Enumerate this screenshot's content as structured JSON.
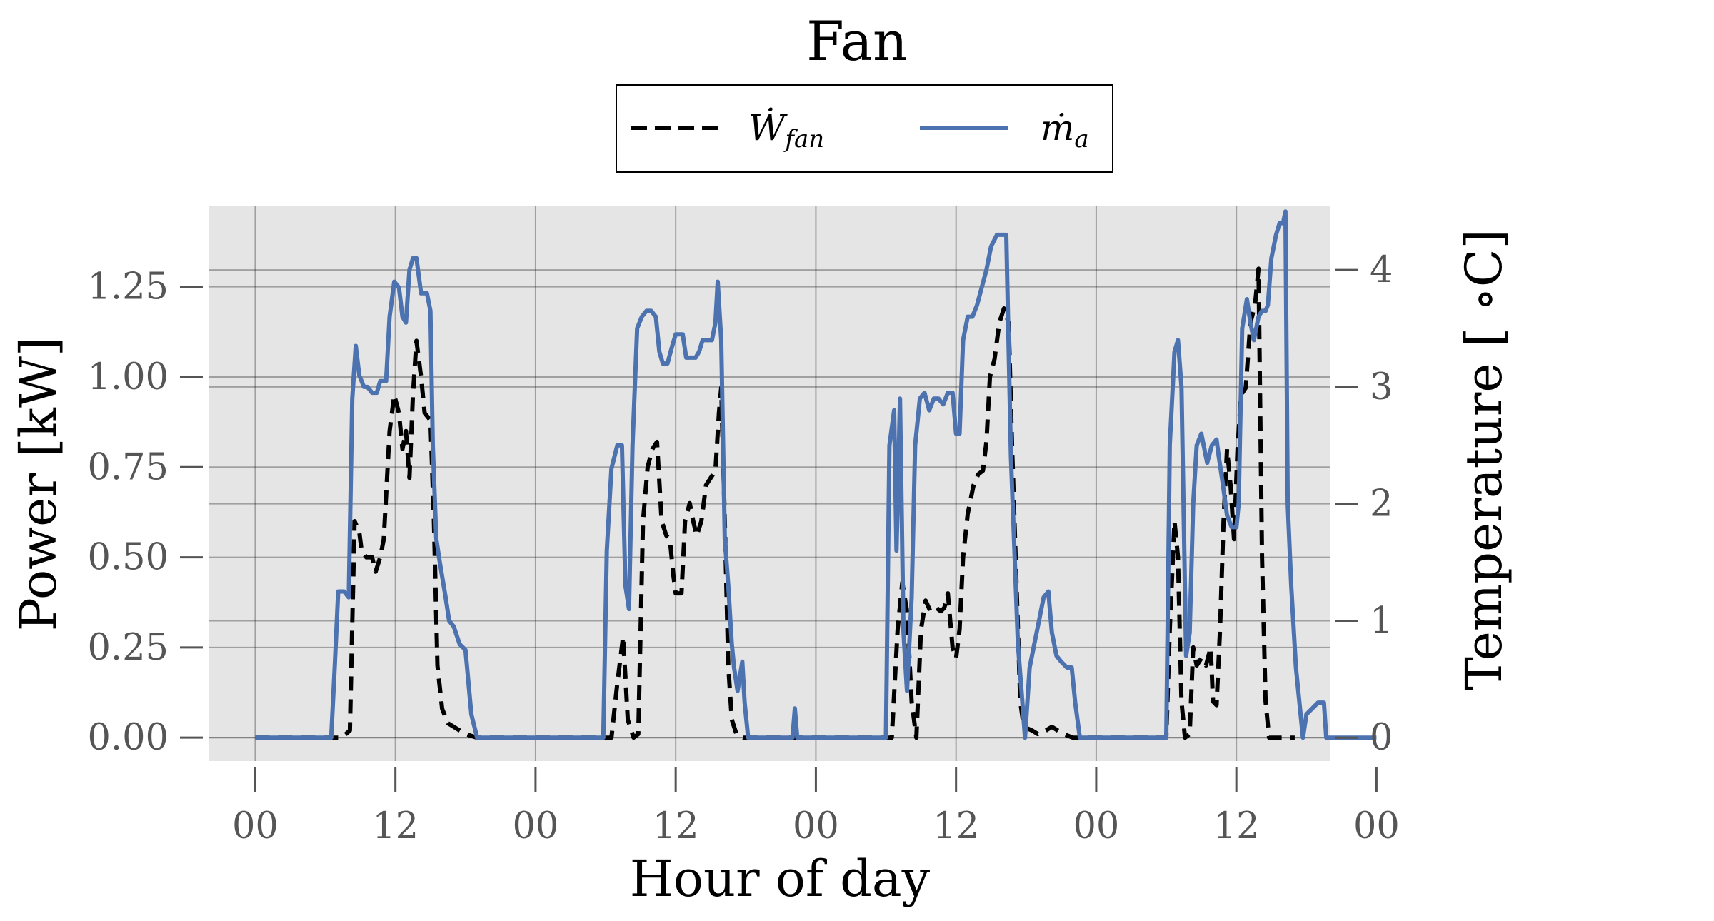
{
  "chart_data": {
    "type": "line",
    "title": "Fan",
    "xlabel": "Hour of day",
    "ylabel": "Power [kW]",
    "ylabel_right": "Temperature [$^\\circ$C]",
    "ylabel_right_display": "Temperature [ ∘C]",
    "x_unit": "hours",
    "xlim": [
      -4,
      92
    ],
    "ylim": [
      -0.065,
      1.475
    ],
    "ylim_right": [
      -0.2,
      4.55
    ],
    "x_ticks": [
      0,
      12,
      24,
      36,
      48,
      60,
      72,
      84,
      96
    ],
    "x_tick_labels": [
      "00",
      "12",
      "00",
      "12",
      "00",
      "12",
      "00",
      "12",
      "00"
    ],
    "y_ticks": [
      0.0,
      0.25,
      0.5,
      0.75,
      1.0,
      1.25
    ],
    "y_tick_labels": [
      "0.00",
      "0.25",
      "0.50",
      "0.75",
      "1.00",
      "1.25"
    ],
    "y_ticks_right": [
      0,
      1,
      2,
      3,
      4
    ],
    "y_tick_labels_right": [
      "0",
      "1",
      "2",
      "3",
      "4"
    ],
    "grid": true,
    "legend_position": "top-center",
    "legend_entries": [
      {
        "label": "Ẇ",
        "sub": "fan",
        "style": "dashed",
        "color": "#000000"
      },
      {
        "label": "ṁ",
        "sub": "a",
        "style": "solid",
        "color": "#4c72b0"
      }
    ],
    "series": [
      {
        "name": "W_fan",
        "axis": "left",
        "style": "dashed",
        "color": "#000000",
        "points": [
          [
            0,
            0
          ],
          [
            7.4,
            0
          ],
          [
            8.1,
            0.02
          ],
          [
            8.5,
            0.6
          ],
          [
            8.9,
            0.57
          ],
          [
            9.1,
            0.52
          ],
          [
            9.5,
            0.5
          ],
          [
            10,
            0.5
          ],
          [
            10.3,
            0.46
          ],
          [
            10.7,
            0.5
          ],
          [
            11,
            0.55
          ],
          [
            11.5,
            0.85
          ],
          [
            11.9,
            0.95
          ],
          [
            12.3,
            0.9
          ],
          [
            12.6,
            0.8
          ],
          [
            12.9,
            0.85
          ],
          [
            13.2,
            0.72
          ],
          [
            13.5,
            0.95
          ],
          [
            13.8,
            1.1
          ],
          [
            14.2,
            1.0
          ],
          [
            14.5,
            0.9
          ],
          [
            15,
            0.88
          ],
          [
            15.3,
            0.6
          ],
          [
            15.6,
            0.2
          ],
          [
            16,
            0.08
          ],
          [
            16.5,
            0.04
          ],
          [
            17.5,
            0.02
          ],
          [
            18,
            0.01
          ],
          [
            19,
            0
          ],
          [
            30.5,
            0
          ],
          [
            31,
            0.15
          ],
          [
            31.5,
            0.28
          ],
          [
            31.9,
            0.05
          ],
          [
            32.4,
            0
          ],
          [
            32.8,
            0.01
          ],
          [
            33.2,
            0.6
          ],
          [
            33.6,
            0.75
          ],
          [
            34,
            0.8
          ],
          [
            34.4,
            0.82
          ],
          [
            34.8,
            0.6
          ],
          [
            35.2,
            0.56
          ],
          [
            35.5,
            0.55
          ],
          [
            35.8,
            0.45
          ],
          [
            36,
            0.4
          ],
          [
            36.5,
            0.4
          ],
          [
            36.8,
            0.6
          ],
          [
            37.2,
            0.65
          ],
          [
            37.5,
            0.6
          ],
          [
            37.8,
            0.56
          ],
          [
            38.2,
            0.6
          ],
          [
            38.6,
            0.7
          ],
          [
            39,
            0.72
          ],
          [
            39.4,
            0.74
          ],
          [
            39.7,
            0.9
          ],
          [
            39.9,
            0.97
          ],
          [
            40.2,
            0.6
          ],
          [
            40.5,
            0.2
          ],
          [
            40.8,
            0.05
          ],
          [
            41.2,
            0.01
          ],
          [
            41.8,
            0
          ],
          [
            54.5,
            0
          ],
          [
            55,
            0.3
          ],
          [
            55.4,
            0.43
          ],
          [
            55.8,
            0.35
          ],
          [
            56.2,
            0.1
          ],
          [
            56.6,
            0
          ],
          [
            57,
            0.3
          ],
          [
            57.4,
            0.38
          ],
          [
            57.8,
            0.35
          ],
          [
            58.3,
            0.36
          ],
          [
            58.7,
            0.35
          ],
          [
            59,
            0.36
          ],
          [
            59.3,
            0.4
          ],
          [
            59.7,
            0.25
          ],
          [
            60,
            0.22
          ],
          [
            60.3,
            0.3
          ],
          [
            60.6,
            0.5
          ],
          [
            61,
            0.62
          ],
          [
            61.5,
            0.7
          ],
          [
            61.9,
            0.73
          ],
          [
            62.3,
            0.74
          ],
          [
            62.6,
            0.82
          ],
          [
            62.9,
            1.0
          ],
          [
            63.3,
            1.05
          ],
          [
            63.7,
            1.15
          ],
          [
            64.1,
            1.19
          ],
          [
            64.5,
            1.15
          ],
          [
            64.8,
            0.8
          ],
          [
            65.2,
            0.4
          ],
          [
            65.5,
            0.1
          ],
          [
            65.8,
            0.03
          ],
          [
            66.5,
            0.02
          ],
          [
            67,
            0.01
          ],
          [
            67.7,
            0.02
          ],
          [
            68.2,
            0.03
          ],
          [
            68.7,
            0.02
          ],
          [
            69.2,
            0.01
          ],
          [
            70,
            0
          ],
          [
            78,
            0
          ],
          [
            78.3,
            0.3
          ],
          [
            78.7,
            0.6
          ],
          [
            79,
            0.5
          ],
          [
            79.3,
            0.1
          ],
          [
            79.6,
            0
          ],
          [
            80,
            0.01
          ],
          [
            80.3,
            0.25
          ],
          [
            80.6,
            0.2
          ],
          [
            81,
            0.22
          ],
          [
            81.4,
            0.2
          ],
          [
            81.8,
            0.25
          ],
          [
            82,
            0.1
          ],
          [
            82.3,
            0.09
          ],
          [
            82.6,
            0.3
          ],
          [
            82.9,
            0.6
          ],
          [
            83.2,
            0.8
          ],
          [
            83.5,
            0.7
          ],
          [
            83.8,
            0.55
          ],
          [
            84.1,
            0.8
          ],
          [
            84.4,
            0.95
          ],
          [
            84.8,
            0.97
          ],
          [
            85.2,
            1.15
          ],
          [
            85.6,
            1.2
          ],
          [
            85.9,
            1.3
          ],
          [
            86.2,
            0.5
          ],
          [
            86.5,
            0.1
          ],
          [
            86.8,
            0
          ],
          [
            87.5,
            0
          ],
          [
            89,
            0
          ]
        ]
      },
      {
        "name": "m_a",
        "axis": "right",
        "style": "solid",
        "color": "#4c72b0",
        "points": [
          [
            0,
            0
          ],
          [
            6.5,
            0
          ],
          [
            6.8,
            0.6
          ],
          [
            7.1,
            1.25
          ],
          [
            7.6,
            1.25
          ],
          [
            8,
            1.2
          ],
          [
            8.3,
            2.9
          ],
          [
            8.6,
            3.35
          ],
          [
            8.9,
            3.1
          ],
          [
            9.3,
            3.0
          ],
          [
            9.6,
            3.0
          ],
          [
            10,
            2.95
          ],
          [
            10.4,
            2.95
          ],
          [
            10.7,
            3.05
          ],
          [
            11.2,
            3.05
          ],
          [
            11.5,
            3.6
          ],
          [
            11.9,
            3.9
          ],
          [
            12.3,
            3.85
          ],
          [
            12.6,
            3.6
          ],
          [
            12.9,
            3.55
          ],
          [
            13.2,
            4.0
          ],
          [
            13.5,
            4.1
          ],
          [
            13.8,
            4.1
          ],
          [
            14.2,
            3.8
          ],
          [
            14.7,
            3.8
          ],
          [
            15,
            3.65
          ],
          [
            15.2,
            2.5
          ],
          [
            15.5,
            1.7
          ],
          [
            15.8,
            1.5
          ],
          [
            16.3,
            1.2
          ],
          [
            16.6,
            1.0
          ],
          [
            17,
            0.95
          ],
          [
            17.5,
            0.8
          ],
          [
            18,
            0.75
          ],
          [
            18.5,
            0.2
          ],
          [
            19,
            0
          ],
          [
            29.8,
            0
          ],
          [
            30.1,
            1.6
          ],
          [
            30.5,
            2.3
          ],
          [
            31,
            2.5
          ],
          [
            31.4,
            2.5
          ],
          [
            31.7,
            1.3
          ],
          [
            32,
            1.1
          ],
          [
            32.3,
            2.5
          ],
          [
            32.7,
            3.5
          ],
          [
            33.1,
            3.6
          ],
          [
            33.5,
            3.65
          ],
          [
            33.9,
            3.65
          ],
          [
            34.3,
            3.6
          ],
          [
            34.6,
            3.3
          ],
          [
            34.9,
            3.2
          ],
          [
            35.3,
            3.2
          ],
          [
            35.7,
            3.35
          ],
          [
            36,
            3.45
          ],
          [
            36.3,
            3.45
          ],
          [
            36.6,
            3.45
          ],
          [
            36.9,
            3.25
          ],
          [
            37.3,
            3.25
          ],
          [
            37.7,
            3.25
          ],
          [
            38,
            3.3
          ],
          [
            38.3,
            3.4
          ],
          [
            38.7,
            3.4
          ],
          [
            39.1,
            3.4
          ],
          [
            39.4,
            3.55
          ],
          [
            39.6,
            3.9
          ],
          [
            39.9,
            3.4
          ],
          [
            40.2,
            1.7
          ],
          [
            40.5,
            1.3
          ],
          [
            40.8,
            0.8
          ],
          [
            41,
            0.6
          ],
          [
            41.3,
            0.4
          ],
          [
            41.7,
            0.65
          ],
          [
            41.9,
            0.3
          ],
          [
            42.2,
            0
          ],
          [
            46,
            0
          ],
          [
            46.2,
            0.25
          ],
          [
            46.4,
            0
          ],
          [
            47,
            0
          ],
          [
            54,
            0
          ],
          [
            54.3,
            2.5
          ],
          [
            54.7,
            2.8
          ],
          [
            54.9,
            1.6
          ],
          [
            55.2,
            2.9
          ],
          [
            55.5,
            0.9
          ],
          [
            55.8,
            0.4
          ],
          [
            56.2,
            1.2
          ],
          [
            56.5,
            2.5
          ],
          [
            56.9,
            2.9
          ],
          [
            57.3,
            2.95
          ],
          [
            57.7,
            2.8
          ],
          [
            58.1,
            2.9
          ],
          [
            58.5,
            2.9
          ],
          [
            58.9,
            2.85
          ],
          [
            59.3,
            2.95
          ],
          [
            59.7,
            2.95
          ],
          [
            60,
            2.6
          ],
          [
            60.3,
            2.6
          ],
          [
            60.6,
            3.4
          ],
          [
            61,
            3.6
          ],
          [
            61.4,
            3.6
          ],
          [
            61.8,
            3.7
          ],
          [
            62.2,
            3.85
          ],
          [
            62.6,
            4.0
          ],
          [
            63,
            4.2
          ],
          [
            63.5,
            4.3
          ],
          [
            63.9,
            4.3
          ],
          [
            64.3,
            4.3
          ],
          [
            64.7,
            2.4
          ],
          [
            65,
            1.6
          ],
          [
            65.3,
            0.8
          ],
          [
            65.6,
            0.4
          ],
          [
            65.9,
            0
          ],
          [
            66.3,
            0.6
          ],
          [
            66.7,
            0.8
          ],
          [
            67.1,
            1.0
          ],
          [
            67.5,
            1.2
          ],
          [
            67.9,
            1.25
          ],
          [
            68.2,
            0.9
          ],
          [
            68.6,
            0.7
          ],
          [
            69,
            0.65
          ],
          [
            69.5,
            0.6
          ],
          [
            69.9,
            0.6
          ],
          [
            70.2,
            0.3
          ],
          [
            70.6,
            0
          ],
          [
            78,
            0
          ],
          [
            78.3,
            2.5
          ],
          [
            78.7,
            3.3
          ],
          [
            79,
            3.4
          ],
          [
            79.3,
            3.0
          ],
          [
            79.7,
            0.7
          ],
          [
            80,
            0.9
          ],
          [
            80.3,
            2.0
          ],
          [
            80.6,
            2.5
          ],
          [
            81,
            2.6
          ],
          [
            81.5,
            2.35
          ],
          [
            81.9,
            2.5
          ],
          [
            82.3,
            2.55
          ],
          [
            82.5,
            2.4
          ],
          [
            82.8,
            2.2
          ],
          [
            83.2,
            1.9
          ],
          [
            83.6,
            1.8
          ],
          [
            84,
            1.8
          ],
          [
            84.2,
            2.0
          ],
          [
            84.5,
            3.5
          ],
          [
            84.9,
            3.75
          ],
          [
            85.2,
            3.55
          ],
          [
            85.5,
            3.4
          ],
          [
            85.9,
            3.6
          ],
          [
            86.2,
            3.65
          ],
          [
            86.5,
            3.65
          ],
          [
            86.7,
            3.7
          ],
          [
            87,
            4.1
          ],
          [
            87.4,
            4.3
          ],
          [
            87.7,
            4.4
          ],
          [
            88,
            4.4
          ],
          [
            88.2,
            4.5
          ],
          [
            88.4,
            2.0
          ],
          [
            88.7,
            1.3
          ],
          [
            89.1,
            0.6
          ],
          [
            89.4,
            0.3
          ],
          [
            89.7,
            0
          ],
          [
            90,
            0.2
          ],
          [
            90.5,
            0.25
          ],
          [
            91,
            0.3
          ],
          [
            91.5,
            0.3
          ],
          [
            91.7,
            0
          ],
          [
            92.5,
            0
          ],
          [
            96,
            0
          ]
        ]
      }
    ]
  }
}
